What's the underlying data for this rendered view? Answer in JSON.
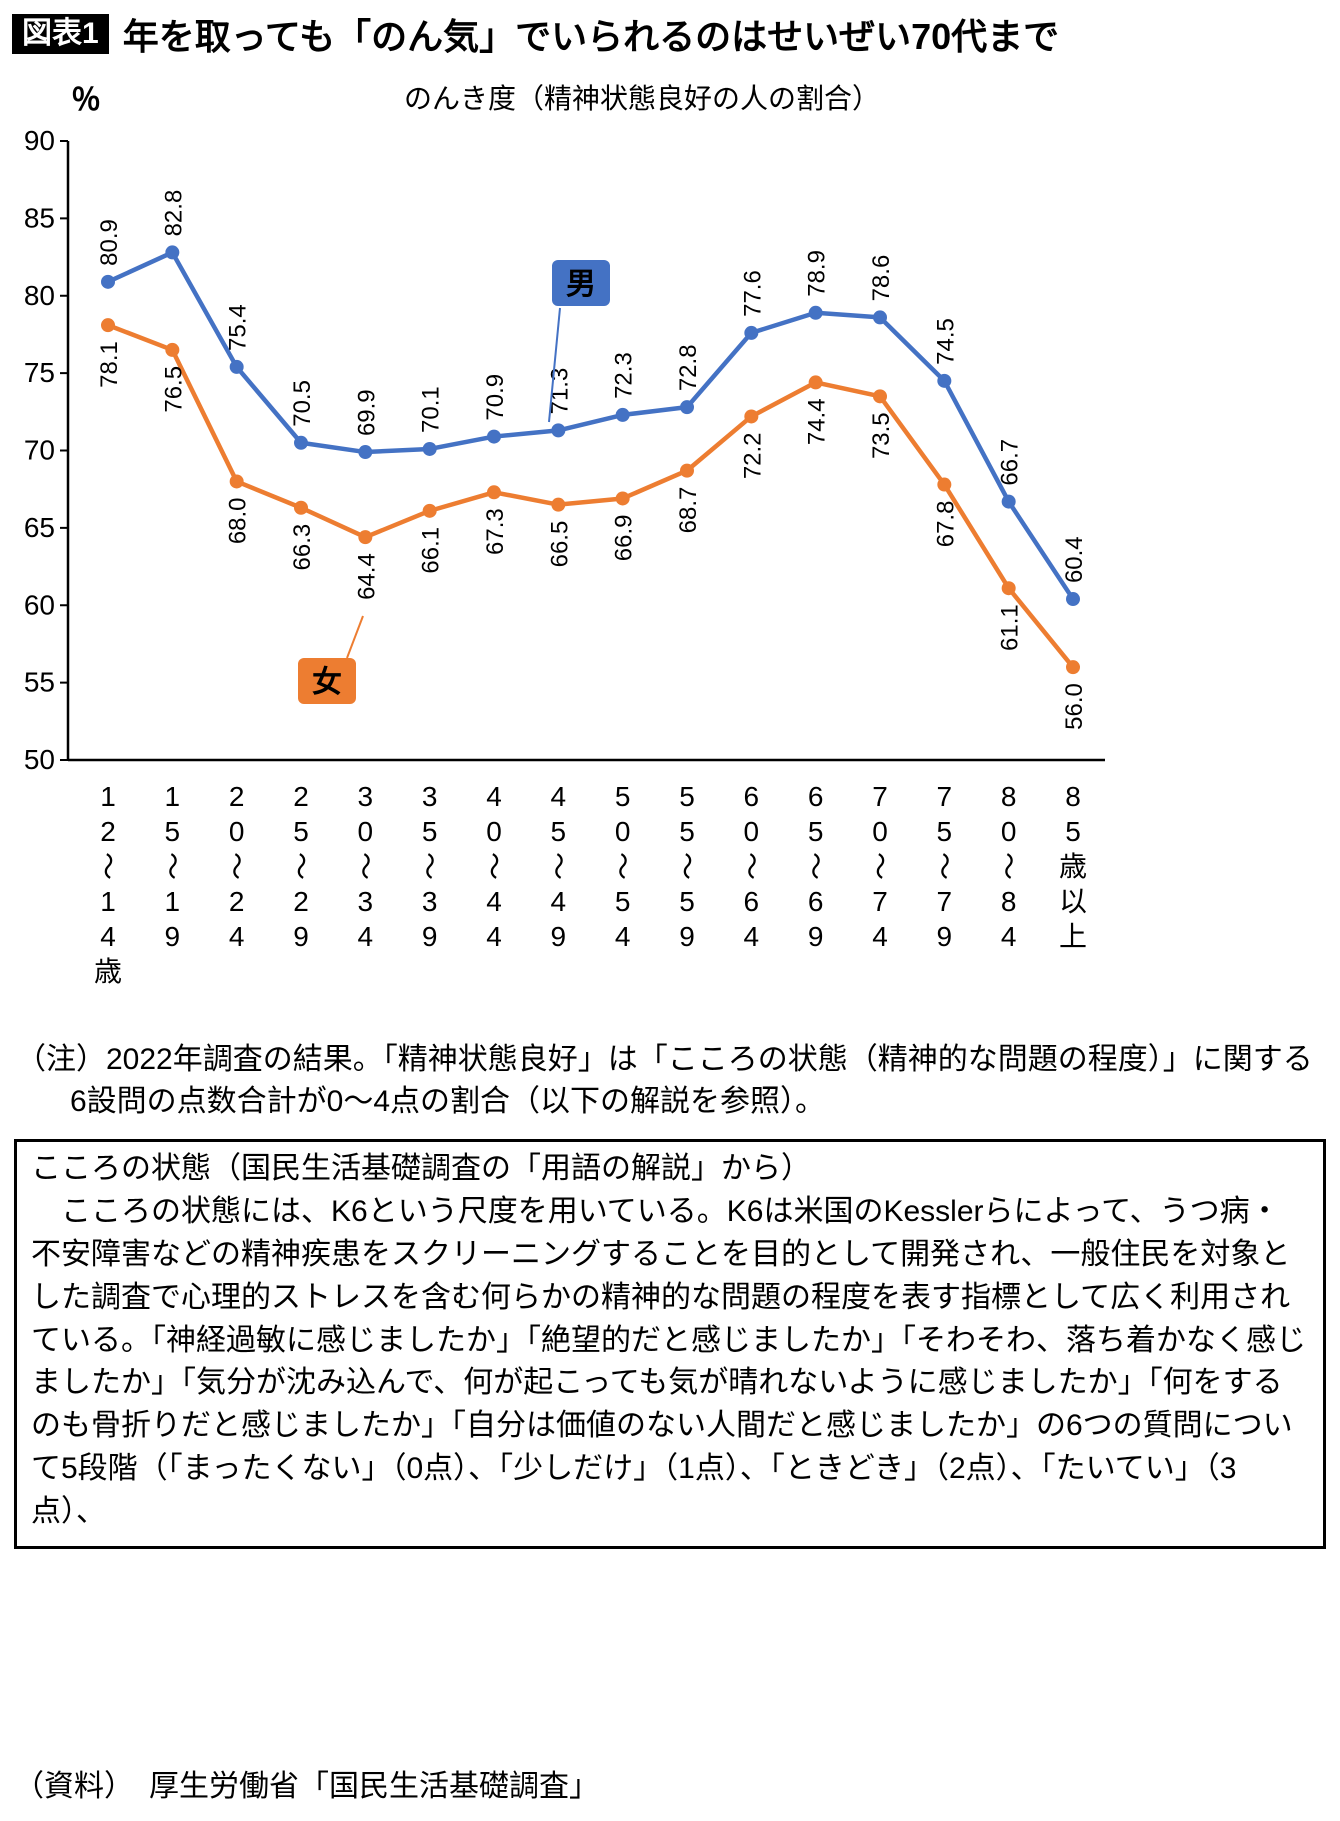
{
  "page": {
    "figure_tag": "図表1",
    "title": "年を取っても「のん気」でいられるのはせいぜい70代まで",
    "note": "（注）2022年調査の結果。「精神状態良好」は「こころの状態（精神的な問題の程度）」に関する6設問の点数合計が0～4点の割合（以下の解説を参照）。",
    "explanation_box": {
      "heading": "こころの状態（国民生活基礎調査の「用語の解説」から）",
      "body": "　こころの状態には、K6という尺度を用いている。K6は米国のKesslerらによって、うつ病・不安障害などの精神疾患をスクリーニングすることを目的として開発され、一般住民を対象とした調査で心理的ストレスを含む何らかの精神的な問題の程度を表す指標として広く利用されている。「神経過敏に感じましたか」「絶望的だと感じましたか」「そわそわ、落ち着かなく感じましたか」「気分が沈み込んで、何が起こっても気が晴れないように感じましたか」「何をするのも骨折りだと感じましたか」「自分は価値のない人間だと感じましたか」の6つの質問について5段階（「まったくない」（0点）、「少しだけ」（1点）、「ときどき」（2点）、「たいてい」（3点）、"
    },
    "source": "（資料）　厚生労働省「国民生活基礎調査」"
  },
  "chart_data": {
    "type": "line",
    "title": "のんき度（精神状態良好の人の割合）",
    "ylabel": "％",
    "ylim": [
      50,
      90
    ],
    "ytick_step": 5,
    "grid": false,
    "legend_position": "inline-callouts",
    "categories": [
      "12～14歳",
      "15～19",
      "20～24",
      "25～29",
      "30～34",
      "35～39",
      "40～44",
      "45～49",
      "50～54",
      "55～59",
      "60～64",
      "65～69",
      "70～74",
      "75～79",
      "80～84",
      "85歳以上"
    ],
    "series": [
      {
        "name": "男",
        "color": "#4472C4",
        "label_position": "above",
        "values": [
          80.9,
          82.8,
          75.4,
          70.5,
          69.9,
          70.1,
          70.9,
          71.3,
          72.3,
          72.8,
          77.6,
          78.9,
          78.6,
          74.5,
          66.7,
          60.4
        ]
      },
      {
        "name": "女",
        "color": "#ED7D31",
        "label_position": "below",
        "values": [
          78.1,
          76.5,
          68.0,
          66.3,
          64.4,
          66.1,
          67.3,
          66.5,
          66.9,
          68.7,
          72.2,
          74.4,
          73.5,
          67.8,
          61.1,
          56.0
        ]
      }
    ]
  }
}
